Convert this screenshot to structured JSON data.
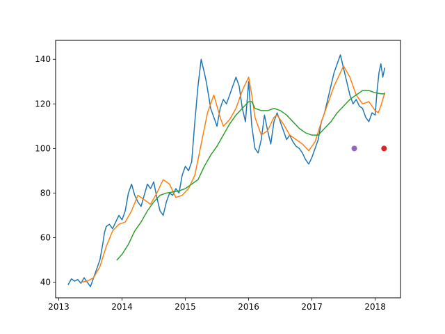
{
  "chart_data": {
    "type": "line",
    "title": "",
    "xlabel": "",
    "ylabel": "",
    "xlim": [
      2012.95,
      2018.4
    ],
    "ylim": [
      33,
      148.5
    ],
    "x_ticks": [
      2013,
      2014,
      2015,
      2016,
      2017,
      2018
    ],
    "x_tick_labels": [
      "2013",
      "2014",
      "2015",
      "2016",
      "2017",
      "2018"
    ],
    "y_ticks": [
      40,
      60,
      80,
      100,
      120,
      140
    ],
    "y_tick_labels": [
      "40",
      "60",
      "80",
      "100",
      "120",
      "140"
    ],
    "grid": false,
    "legend": "none",
    "series": [
      {
        "color": "#1f77b4",
        "kind": "line",
        "x": [
          2013.15,
          2013.2,
          2013.25,
          2013.3,
          2013.35,
          2013.4,
          2013.45,
          2013.5,
          2013.55,
          2013.6,
          2013.65,
          2013.7,
          2013.72,
          2013.75,
          2013.8,
          2013.85,
          2013.9,
          2013.95,
          2014.0,
          2014.05,
          2014.1,
          2014.15,
          2014.2,
          2014.25,
          2014.3,
          2014.35,
          2014.4,
          2014.45,
          2014.5,
          2014.55,
          2014.6,
          2014.65,
          2014.7,
          2014.75,
          2014.8,
          2014.85,
          2014.9,
          2014.95,
          2015.0,
          2015.05,
          2015.1,
          2015.15,
          2015.2,
          2015.25,
          2015.3,
          2015.33,
          2015.36,
          2015.4,
          2015.45,
          2015.5,
          2015.55,
          2015.6,
          2015.65,
          2015.7,
          2015.75,
          2015.8,
          2015.85,
          2015.9,
          2015.95,
          2016.0,
          2016.05,
          2016.1,
          2016.15,
          2016.2,
          2016.25,
          2016.3,
          2016.35,
          2016.4,
          2016.45,
          2016.5,
          2016.55,
          2016.6,
          2016.65,
          2016.7,
          2016.75,
          2016.8,
          2016.85,
          2016.9,
          2016.95,
          2017.0,
          2017.05,
          2017.1,
          2017.15,
          2017.2,
          2017.25,
          2017.3,
          2017.35,
          2017.4,
          2017.45,
          2017.5,
          2017.55,
          2017.6,
          2017.65,
          2017.7,
          2017.75,
          2017.8,
          2017.85,
          2017.9,
          2017.95,
          2018.0,
          2018.03,
          2018.06,
          2018.09,
          2018.12,
          2018.15
        ],
        "y": [
          39,
          41.5,
          40.5,
          41.2,
          39.5,
          42,
          40,
          38,
          42,
          46,
          50,
          58,
          62,
          65,
          66,
          64,
          67,
          70,
          68,
          72,
          80,
          84,
          79,
          76,
          74,
          79,
          84,
          82,
          85,
          78,
          72,
          70,
          76,
          80,
          79,
          82,
          80,
          88,
          92,
          90,
          94,
          112,
          128,
          140,
          134,
          130,
          125,
          118,
          114,
          110,
          118,
          122,
          120,
          124,
          128,
          132,
          128,
          118,
          112,
          130,
          110,
          100,
          98,
          104,
          115,
          108,
          102,
          112,
          116,
          112,
          108,
          104,
          106,
          103,
          101,
          100,
          98,
          95,
          93,
          96,
          100,
          104,
          112,
          116,
          122,
          128,
          134,
          138,
          142,
          136,
          130,
          124,
          120,
          122,
          119,
          118,
          114,
          112,
          116,
          115,
          126,
          134,
          138,
          132,
          136
        ]
      },
      {
        "color": "#ff7f0e",
        "kind": "line",
        "x": [
          2013.35,
          2013.45,
          2013.55,
          2013.65,
          2013.75,
          2013.85,
          2013.95,
          2014.05,
          2014.15,
          2014.25,
          2014.35,
          2014.45,
          2014.55,
          2014.65,
          2014.75,
          2014.85,
          2014.95,
          2015.05,
          2015.15,
          2015.25,
          2015.35,
          2015.45,
          2015.55,
          2015.6,
          2015.7,
          2015.8,
          2015.9,
          2016.0,
          2016.05,
          2016.1,
          2016.2,
          2016.3,
          2016.4,
          2016.45,
          2016.55,
          2016.65,
          2016.75,
          2016.85,
          2016.95,
          2017.05,
          2017.15,
          2017.25,
          2017.35,
          2017.45,
          2017.5,
          2017.6,
          2017.7,
          2017.8,
          2017.9,
          2018.0,
          2018.05,
          2018.1,
          2018.15
        ],
        "y": [
          40,
          40.5,
          42,
          47,
          56,
          63,
          66,
          67,
          72,
          79,
          77,
          75,
          80,
          86,
          84,
          78,
          79,
          82,
          88,
          102,
          116,
          124,
          114,
          110,
          113,
          118,
          126,
          132,
          124,
          114,
          106,
          108,
          114,
          115,
          111,
          106,
          104,
          102,
          99,
          103,
          112,
          120,
          128,
          134,
          137,
          132,
          124,
          120,
          121,
          117,
          116,
          120,
          125
        ]
      },
      {
        "color": "#2ca02c",
        "kind": "line",
        "x": [
          2013.92,
          2014.0,
          2014.1,
          2014.2,
          2014.3,
          2014.4,
          2014.5,
          2014.6,
          2014.7,
          2014.8,
          2014.9,
          2015.0,
          2015.1,
          2015.2,
          2015.3,
          2015.4,
          2015.5,
          2015.6,
          2015.7,
          2015.8,
          2015.9,
          2016.0,
          2016.05,
          2016.1,
          2016.2,
          2016.3,
          2016.4,
          2016.5,
          2016.6,
          2016.7,
          2016.8,
          2016.9,
          2017.0,
          2017.1,
          2017.2,
          2017.3,
          2017.4,
          2017.5,
          2017.6,
          2017.7,
          2017.8,
          2017.9,
          2018.0,
          2018.1,
          2018.15
        ],
        "y": [
          50,
          52.5,
          57,
          63,
          67,
          72,
          76,
          79,
          80,
          80.5,
          81,
          82,
          84,
          86,
          92,
          97,
          101,
          106,
          111,
          115,
          118,
          121,
          121,
          118,
          117,
          117,
          118,
          117,
          115,
          112,
          109,
          107,
          106,
          106,
          109,
          112,
          116,
          119,
          122,
          124,
          126,
          126,
          125,
          124.5,
          124.5
        ]
      },
      {
        "color": "#9467bd",
        "kind": "scatter",
        "x": [
          2017.67
        ],
        "y": [
          100
        ]
      },
      {
        "color": "#d62728",
        "kind": "scatter",
        "x": [
          2018.14
        ],
        "y": [
          100
        ]
      }
    ]
  }
}
